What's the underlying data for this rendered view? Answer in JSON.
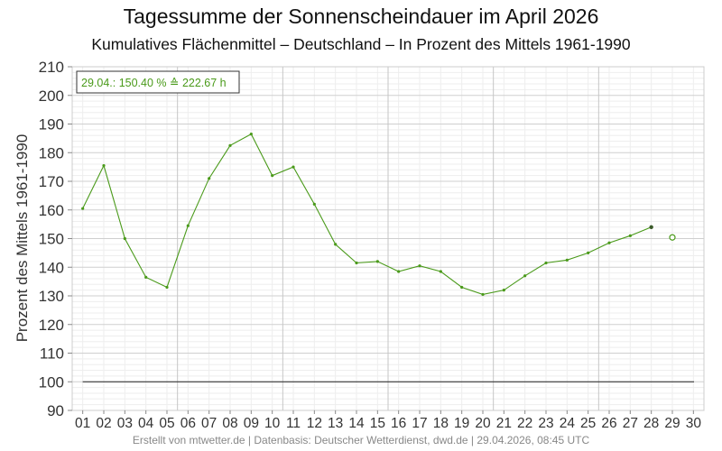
{
  "chart_data": {
    "type": "line",
    "title": "Tagessumme der Sonnenscheindauer im April 2026",
    "subtitle": "Kumulatives Flächenmittel – Deutschland – In Prozent des Mittels 1961-1990",
    "ylabel": "Prozent des Mittels 1961-1990",
    "xlabel": "",
    "categories": [
      "01",
      "02",
      "03",
      "04",
      "05",
      "06",
      "07",
      "08",
      "09",
      "10",
      "11",
      "12",
      "13",
      "14",
      "15",
      "16",
      "17",
      "18",
      "19",
      "20",
      "21",
      "22",
      "23",
      "24",
      "25",
      "26",
      "27",
      "28",
      "29",
      "30"
    ],
    "ylim": [
      90,
      210
    ],
    "y_ticks": [
      90,
      100,
      110,
      120,
      130,
      140,
      150,
      160,
      170,
      180,
      190,
      200,
      210
    ],
    "reference_line": 100,
    "series": [
      {
        "values": [
          160.5,
          175.5,
          150,
          136.5,
          133,
          154.5,
          171,
          182.5,
          186.5,
          172,
          175,
          162,
          148,
          141.5,
          142,
          138.5,
          140.5,
          138.5,
          133,
          130.5,
          132,
          137,
          141.5,
          142.5,
          145,
          148.5,
          151,
          154,
          null,
          null
        ],
        "color": "#4a9a1a"
      }
    ],
    "current_value": {
      "day": "29",
      "value": 150.4
    },
    "annotation": "29.04.: 150.40 % ≙ 222.67 h",
    "grid": true,
    "annotation_position": "top-left"
  },
  "footer": "Erstellt von mtwetter.de | Datenbasis: Deutscher Wetterdienst, dwd.de | 29.04.2026, 08:45 UTC"
}
